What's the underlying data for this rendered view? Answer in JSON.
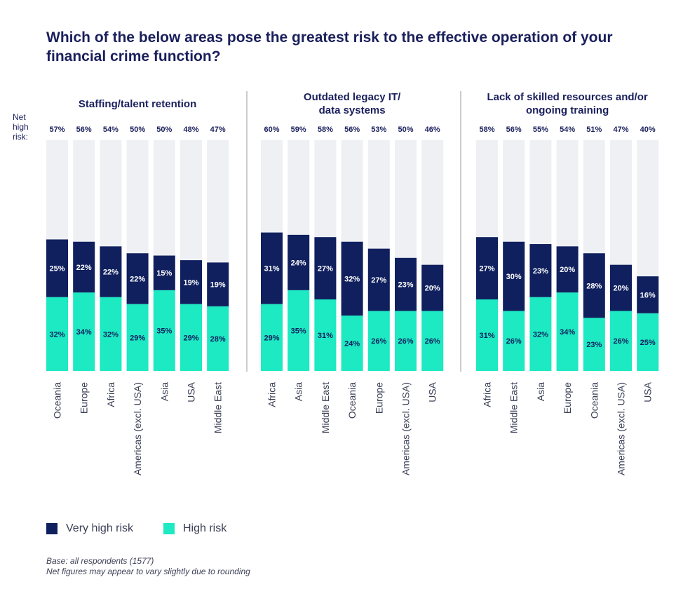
{
  "title": "Which of the below areas pose the greatest risk to the effective operation of your financial crime function?",
  "net_label": "Net high risk:",
  "colors": {
    "very_high": "#10205e",
    "high": "#1de9c3",
    "track": "#eef0f4",
    "divider": "#9a9a9a"
  },
  "legend": {
    "very_high_label": "Very high risk",
    "high_label": "High risk"
  },
  "notes": {
    "base": "Base: all respondents (1577)",
    "rounding": "Net figures may appear to vary slightly due to rounding"
  },
  "chart_data": [
    {
      "type": "bar",
      "stacked": true,
      "title_lines": [
        "Staffing/talent retention"
      ],
      "categories": [
        "Oceania",
        "Europe",
        "Africa",
        "Americas (excl. USA)",
        "Asia",
        "USA",
        "Middle East"
      ],
      "net": [
        "57%",
        "56%",
        "54%",
        "50%",
        "50%",
        "48%",
        "47%"
      ],
      "series": [
        {
          "name": "High risk",
          "values": [
            32,
            34,
            32,
            29,
            35,
            29,
            28
          ]
        },
        {
          "name": "Very high risk",
          "values": [
            25,
            22,
            22,
            22,
            15,
            19,
            19
          ]
        }
      ],
      "ylim": [
        0,
        100
      ]
    },
    {
      "type": "bar",
      "stacked": true,
      "title_lines": [
        "Outdated legacy IT/",
        "data systems"
      ],
      "categories": [
        "Africa",
        "Asia",
        "Middle East",
        "Oceania",
        "Europe",
        "Americas (excl. USA)",
        "USA"
      ],
      "net": [
        "60%",
        "59%",
        "58%",
        "56%",
        "53%",
        "50%",
        "46%"
      ],
      "series": [
        {
          "name": "High risk",
          "values": [
            29,
            35,
            31,
            24,
            26,
            26,
            26
          ]
        },
        {
          "name": "Very high risk",
          "values": [
            31,
            24,
            27,
            32,
            27,
            23,
            20
          ]
        }
      ],
      "ylim": [
        0,
        100
      ]
    },
    {
      "type": "bar",
      "stacked": true,
      "title_lines": [
        "Lack of skilled resources and/or",
        "ongoing training"
      ],
      "categories": [
        "Africa",
        "Middle East",
        "Asia",
        "Europe",
        "Oceania",
        "Americas (excl. USA)",
        "USA"
      ],
      "net": [
        "58%",
        "56%",
        "55%",
        "54%",
        "51%",
        "47%",
        "40%"
      ],
      "series": [
        {
          "name": "High risk",
          "values": [
            31,
            26,
            32,
            34,
            23,
            26,
            25
          ]
        },
        {
          "name": "Very high risk",
          "values": [
            27,
            30,
            23,
            20,
            28,
            20,
            16
          ]
        }
      ],
      "ylim": [
        0,
        100
      ]
    }
  ]
}
